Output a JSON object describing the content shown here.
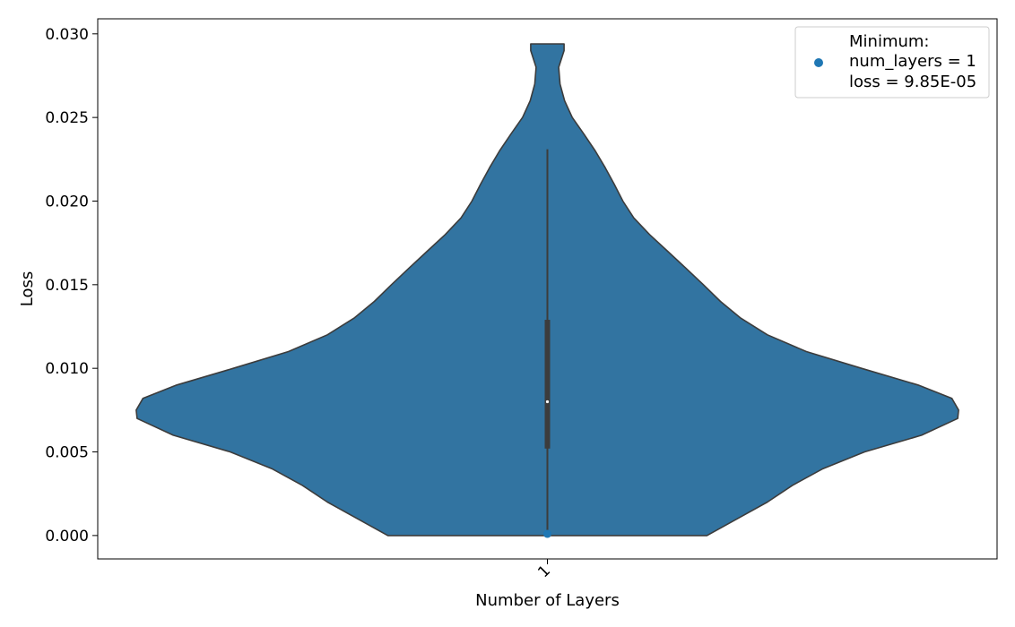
{
  "chart_data": {
    "type": "violin",
    "xlabel": "Number of Layers",
    "ylabel": "Loss",
    "categories": [
      "1"
    ],
    "ylim": [
      -0.0014,
      0.0309
    ],
    "yticks": [
      "0.000",
      "0.005",
      "0.010",
      "0.015",
      "0.020",
      "0.025",
      "0.030"
    ],
    "grid": false,
    "violin_color": "#3274a1",
    "outline_color": "#3c3c3c",
    "box": {
      "q1": 0.0052,
      "median": 0.008,
      "q3": 0.0129,
      "whisker_low": 0.0001,
      "whisker_high": 0.0231
    },
    "density_profile": [
      [
        0.0,
        0.353
      ],
      [
        0.001,
        0.42
      ],
      [
        0.002,
        0.487
      ],
      [
        0.003,
        0.542
      ],
      [
        0.004,
        0.61
      ],
      [
        0.005,
        0.702
      ],
      [
        0.006,
        0.828
      ],
      [
        0.007,
        0.908
      ],
      [
        0.0075,
        0.91
      ],
      [
        0.0082,
        0.895
      ],
      [
        0.009,
        0.82
      ],
      [
        0.01,
        0.695
      ],
      [
        0.011,
        0.573
      ],
      [
        0.012,
        0.487
      ],
      [
        0.013,
        0.428
      ],
      [
        0.014,
        0.383
      ],
      [
        0.015,
        0.345
      ],
      [
        0.016,
        0.306
      ],
      [
        0.017,
        0.266
      ],
      [
        0.018,
        0.226
      ],
      [
        0.019,
        0.191
      ],
      [
        0.02,
        0.167
      ],
      [
        0.021,
        0.148
      ],
      [
        0.022,
        0.128
      ],
      [
        0.023,
        0.106
      ],
      [
        0.024,
        0.081
      ],
      [
        0.025,
        0.055
      ],
      [
        0.026,
        0.038
      ],
      [
        0.027,
        0.028
      ],
      [
        0.028,
        0.025
      ],
      [
        0.029,
        0.037
      ],
      [
        0.0294,
        0.037
      ]
    ],
    "minimum_point": {
      "x": "1",
      "y": 9.85e-05,
      "color": "#1f77b4"
    },
    "legend": {
      "position": "top-right",
      "lines": [
        "Minimum:",
        "num_layers = 1",
        "loss = 9.85E-05"
      ]
    }
  }
}
